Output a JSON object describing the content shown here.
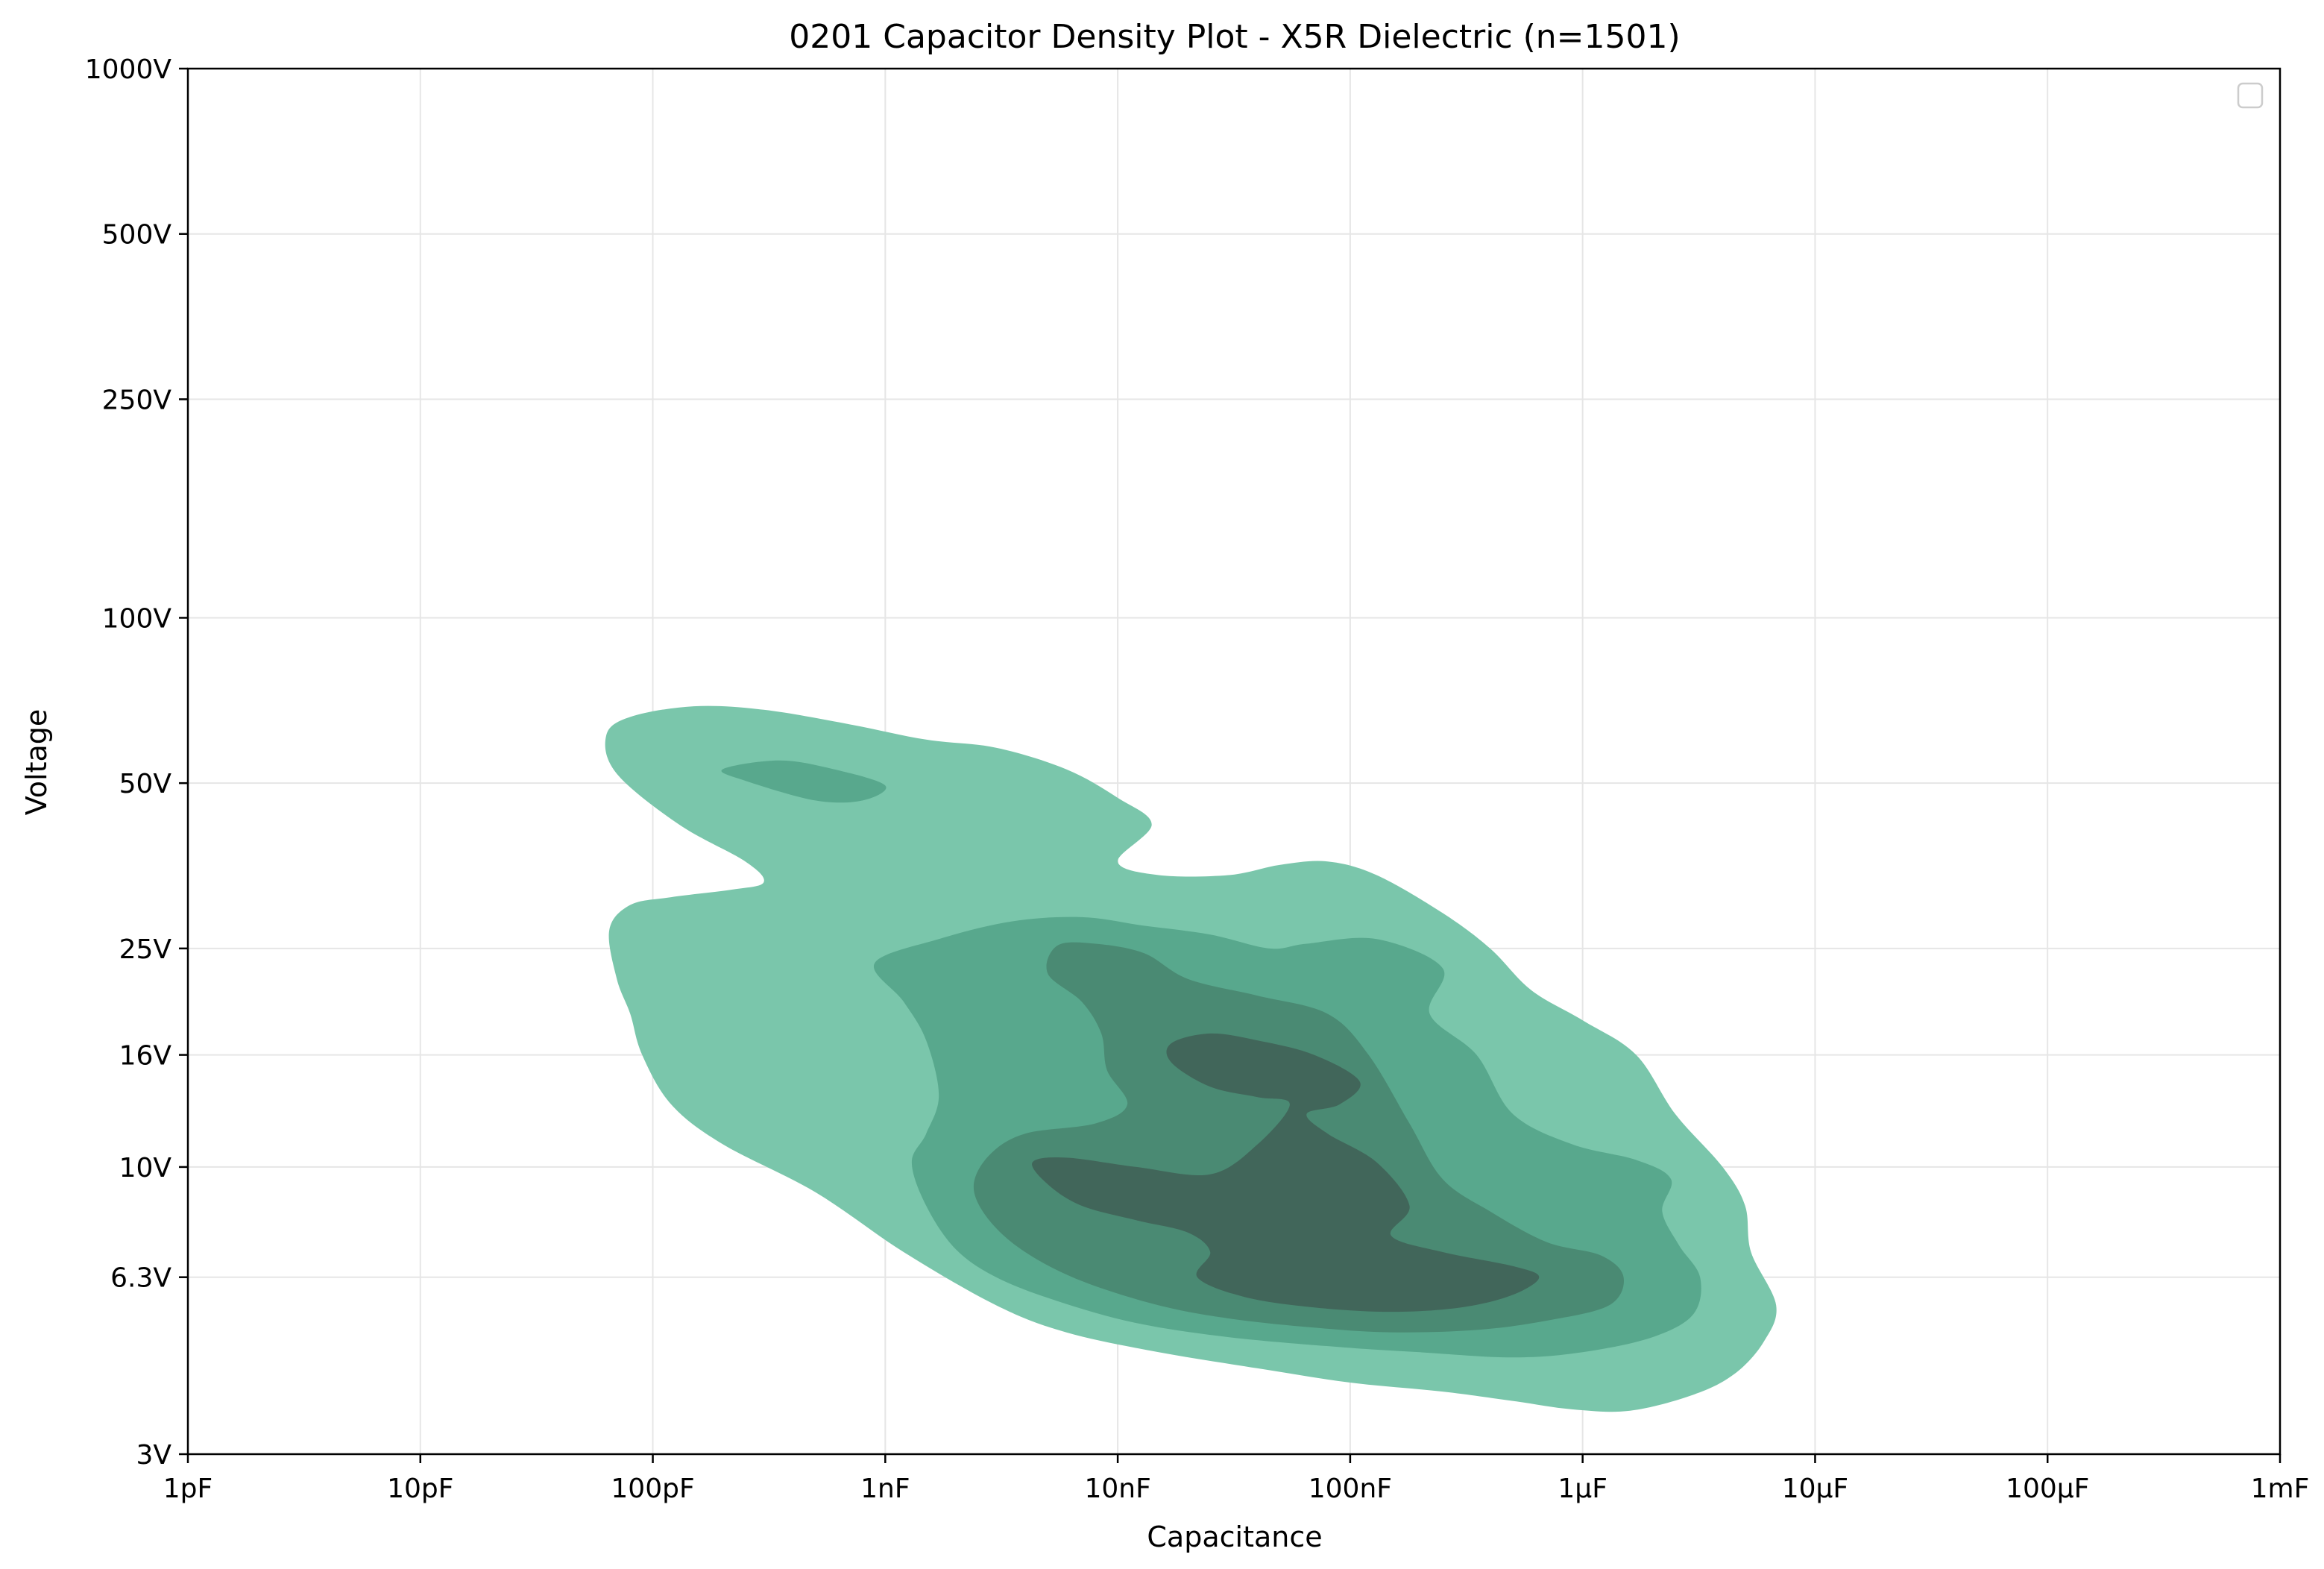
{
  "chart_data": {
    "type": "heatmap",
    "subtype": "kde-filled-contour",
    "title": "0201 Capacitor Density Plot - X5R Dielectric (n=1501)",
    "xlabel": "Capacitance",
    "ylabel": "Voltage",
    "x_scale": "log",
    "y_scale": "log",
    "x_unit": "F",
    "y_unit": "V",
    "xlim": [
      1e-12,
      0.001
    ],
    "ylim": [
      3,
      1000
    ],
    "x_ticks": [
      {
        "value": 1e-12,
        "label": "1pF"
      },
      {
        "value": 1e-11,
        "label": "10pF"
      },
      {
        "value": 1e-10,
        "label": "100pF"
      },
      {
        "value": 1e-09,
        "label": "1nF"
      },
      {
        "value": 1e-08,
        "label": "10nF"
      },
      {
        "value": 1e-07,
        "label": "100nF"
      },
      {
        "value": 1e-06,
        "label": "1µF"
      },
      {
        "value": 1e-05,
        "label": "10µF"
      },
      {
        "value": 0.0001,
        "label": "100µF"
      },
      {
        "value": 0.001,
        "label": "1mF"
      }
    ],
    "y_ticks": [
      {
        "value": 3,
        "label": "3V"
      },
      {
        "value": 6.3,
        "label": "6.3V"
      },
      {
        "value": 10,
        "label": "10V"
      },
      {
        "value": 16,
        "label": "16V"
      },
      {
        "value": 25,
        "label": "25V"
      },
      {
        "value": 50,
        "label": "50V"
      },
      {
        "value": 100,
        "label": "100V"
      },
      {
        "value": 250,
        "label": "250V"
      },
      {
        "value": 500,
        "label": "500V"
      },
      {
        "value": 1000,
        "label": "1000V"
      }
    ],
    "grid": true,
    "legend": {
      "placement": "top-right",
      "entries": []
    },
    "sample_count": 1501,
    "contour_colors": [
      "#7ac6ab",
      "#58a88d",
      "#4a8a73",
      "#41665a"
    ],
    "contours": [
      {
        "level": 1,
        "points": [
          [
            6.3e-11,
            61
          ],
          [
            8e-11,
            66
          ],
          [
            1.5e-10,
            69
          ],
          [
            3e-10,
            68
          ],
          [
            7e-10,
            64
          ],
          [
            1.5e-09,
            60
          ],
          [
            3e-09,
            58
          ],
          [
            6e-09,
            53
          ],
          [
            1e-08,
            47
          ],
          [
            1.4e-08,
            42
          ],
          [
            1e-08,
            36
          ],
          [
            1.5e-08,
            34
          ],
          [
            3e-08,
            34
          ],
          [
            5e-08,
            35.5
          ],
          [
            8e-08,
            36
          ],
          [
            1.3e-07,
            34
          ],
          [
            2.5e-07,
            29
          ],
          [
            4e-07,
            25
          ],
          [
            6e-07,
            21
          ],
          [
            1e-06,
            18.5
          ],
          [
            1.7e-06,
            16
          ],
          [
            2.5e-06,
            12.5
          ],
          [
            4e-06,
            10
          ],
          [
            5e-06,
            8.5
          ],
          [
            5.3e-06,
            7
          ],
          [
            6.8e-06,
            5.6
          ],
          [
            6e-06,
            4.8
          ],
          [
            4.5e-06,
            4.2
          ],
          [
            3e-06,
            3.85
          ],
          [
            1.6e-06,
            3.6
          ],
          [
            9e-07,
            3.62
          ],
          [
            5e-07,
            3.75
          ],
          [
            2.5e-07,
            3.9
          ],
          [
            1e-07,
            4.05
          ],
          [
            4e-08,
            4.3
          ],
          [
            1.5e-08,
            4.6
          ],
          [
            6e-09,
            5
          ],
          [
            3e-09,
            5.6
          ],
          [
            1.2e-09,
            7
          ],
          [
            5e-10,
            9
          ],
          [
            2e-10,
            11
          ],
          [
            1.2e-10,
            13
          ],
          [
            9e-11,
            16
          ],
          [
            8e-11,
            19
          ],
          [
            7e-11,
            22
          ],
          [
            6.5e-11,
            27
          ],
          [
            8e-11,
            30
          ],
          [
            1.2e-10,
            31
          ],
          [
            2.2e-10,
            32
          ],
          [
            3e-10,
            33
          ],
          [
            2.5e-10,
            36
          ],
          [
            1.3e-10,
            42
          ],
          [
            7e-11,
            52
          ]
        ]
      },
      {
        "level": 2,
        "points": [
          [
            2e-10,
            53
          ],
          [
            3.5e-10,
            55
          ],
          [
            6e-10,
            53
          ],
          [
            1e-09,
            49.5
          ],
          [
            8e-10,
            46.5
          ],
          [
            5e-10,
            46.5
          ],
          [
            2.5e-10,
            50.5
          ]
        ]
      },
      {
        "level": 2,
        "points": [
          [
            9e-10,
            23.5
          ],
          [
            1.7e-09,
            26
          ],
          [
            3.5e-09,
            28
          ],
          [
            7e-09,
            28.5
          ],
          [
            1.3e-08,
            27.5
          ],
          [
            2.5e-08,
            26.5
          ],
          [
            4.5e-08,
            25
          ],
          [
            6.5e-08,
            25.5
          ],
          [
            1.3e-07,
            26
          ],
          [
            2.5e-07,
            23
          ],
          [
            2.2e-07,
            19
          ],
          [
            3.5e-07,
            16
          ],
          [
            5e-07,
            12.5
          ],
          [
            9e-07,
            11
          ],
          [
            1.7e-06,
            10.3
          ],
          [
            2.4e-06,
            9.5
          ],
          [
            2.2e-06,
            8.3
          ],
          [
            2.6e-06,
            7.2
          ],
          [
            3.2e-06,
            6.3
          ],
          [
            3e-06,
            5.4
          ],
          [
            2e-06,
            4.9
          ],
          [
            1e-06,
            4.6
          ],
          [
            5e-07,
            4.5
          ],
          [
            2e-07,
            4.6
          ],
          [
            9e-08,
            4.7
          ],
          [
            3e-08,
            4.9
          ],
          [
            1.2e-08,
            5.2
          ],
          [
            5.5e-09,
            5.7
          ],
          [
            3e-09,
            6.3
          ],
          [
            2e-09,
            7.1
          ],
          [
            1.5e-09,
            8.5
          ],
          [
            1.3e-09,
            10.2
          ],
          [
            1.5e-09,
            11.5
          ],
          [
            1.7e-09,
            13.5
          ],
          [
            1.5e-09,
            17
          ],
          [
            1.2e-09,
            20
          ]
        ]
      },
      {
        "level": 3,
        "points": [
          [
            5.5e-09,
            25.3
          ],
          [
            8e-09,
            25.5
          ],
          [
            1.3e-08,
            24.5
          ],
          [
            2e-08,
            22
          ],
          [
            4e-08,
            20.5
          ],
          [
            8e-08,
            19
          ],
          [
            1.2e-07,
            16
          ],
          [
            1.8e-07,
            12
          ],
          [
            2.5e-07,
            9.5
          ],
          [
            4e-07,
            8.3
          ],
          [
            7e-07,
            7.3
          ],
          [
            1.2e-06,
            6.9
          ],
          [
            1.5e-06,
            6.3
          ],
          [
            1.3e-06,
            5.6
          ],
          [
            7e-07,
            5.25
          ],
          [
            3.5e-07,
            5.05
          ],
          [
            1.5e-07,
            5
          ],
          [
            7e-08,
            5.1
          ],
          [
            3e-08,
            5.3
          ],
          [
            1.5e-08,
            5.6
          ],
          [
            7e-09,
            6.2
          ],
          [
            4e-09,
            7
          ],
          [
            2.8e-09,
            8
          ],
          [
            2.4e-09,
            9.2
          ],
          [
            2.8e-09,
            10.5
          ],
          [
            4e-09,
            11.5
          ],
          [
            8e-09,
            12
          ],
          [
            1.1e-08,
            13
          ],
          [
            9e-09,
            15
          ],
          [
            8.5e-09,
            17.5
          ],
          [
            7e-09,
            20
          ],
          [
            5e-09,
            22.5
          ]
        ]
      },
      {
        "level": 4,
        "points": [
          [
            1.7e-08,
            16.8
          ],
          [
            2.5e-08,
            17.5
          ],
          [
            4e-08,
            17
          ],
          [
            7e-08,
            16
          ],
          [
            1.1e-07,
            14.3
          ],
          [
            9e-08,
            13
          ],
          [
            6.5e-08,
            12.5
          ],
          [
            8e-08,
            11.5
          ],
          [
            1.3e-07,
            10.2
          ],
          [
            1.8e-07,
            8.5
          ],
          [
            1.5e-07,
            7.5
          ],
          [
            2.5e-07,
            7
          ],
          [
            5e-07,
            6.6
          ],
          [
            6.5e-07,
            6.3
          ],
          [
            5e-07,
            5.85
          ],
          [
            3e-07,
            5.55
          ],
          [
            1.5e-07,
            5.45
          ],
          [
            7e-08,
            5.55
          ],
          [
            3.5e-08,
            5.8
          ],
          [
            2.2e-08,
            6.3
          ],
          [
            2.5e-08,
            7
          ],
          [
            2e-08,
            7.6
          ],
          [
            1.2e-08,
            8
          ],
          [
            7e-09,
            8.5
          ],
          [
            5e-09,
            9.3
          ],
          [
            4.3e-09,
            10.2
          ],
          [
            6e-09,
            10.4
          ],
          [
            1.2e-08,
            10
          ],
          [
            2.5e-08,
            9.7
          ],
          [
            4e-08,
            11
          ],
          [
            5.5e-08,
            13
          ],
          [
            4e-08,
            13.4
          ],
          [
            2.5e-08,
            14
          ],
          [
            1.7e-08,
            15.5
          ]
        ]
      }
    ]
  }
}
